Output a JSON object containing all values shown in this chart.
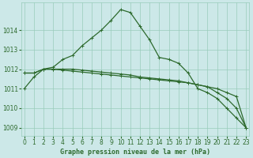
{
  "xlabel": "Graphe pression niveau de la mer (hPa)",
  "hours": [
    0,
    1,
    2,
    3,
    4,
    5,
    6,
    7,
    8,
    9,
    10,
    11,
    12,
    13,
    14,
    15,
    16,
    17,
    18,
    19,
    20,
    21,
    22,
    23
  ],
  "line1": [
    1011.0,
    1011.6,
    1012.0,
    1012.1,
    1012.5,
    1012.7,
    1013.2,
    1013.6,
    1014.0,
    1014.5,
    1015.05,
    1014.9,
    1014.2,
    1013.5,
    1012.6,
    1012.5,
    1012.3,
    1011.8,
    1011.0,
    1010.8,
    1010.5,
    1010.0,
    1009.5,
    1009.0
  ],
  "line2": [
    1011.8,
    1011.8,
    1012.0,
    1012.0,
    1012.0,
    1012.0,
    1011.95,
    1011.9,
    1011.85,
    1011.8,
    1011.75,
    1011.7,
    1011.6,
    1011.55,
    1011.5,
    1011.45,
    1011.4,
    1011.3,
    1011.2,
    1011.1,
    1011.0,
    1010.8,
    1010.6,
    1009.0
  ],
  "line3": [
    1011.8,
    1011.8,
    1012.0,
    1012.0,
    1011.95,
    1011.9,
    1011.85,
    1011.8,
    1011.75,
    1011.7,
    1011.65,
    1011.6,
    1011.55,
    1011.5,
    1011.45,
    1011.4,
    1011.35,
    1011.3,
    1011.2,
    1011.1,
    1010.8,
    1010.5,
    1010.0,
    1009.0
  ],
  "line_color": "#2d6a2d",
  "bg_color": "#cce8e8",
  "grid_color": "#99ccbb",
  "ylim_min": 1008.6,
  "ylim_max": 1015.4,
  "yticks": [
    1009,
    1010,
    1011,
    1012,
    1013,
    1014
  ],
  "ytick_labels": [
    "1009",
    "1010",
    "1011",
    "1012",
    "1013",
    "1014"
  ],
  "marker": "+",
  "marker_size": 3,
  "linewidth": 0.9,
  "tick_fontsize": 5.5,
  "xlabel_fontsize": 6.0
}
